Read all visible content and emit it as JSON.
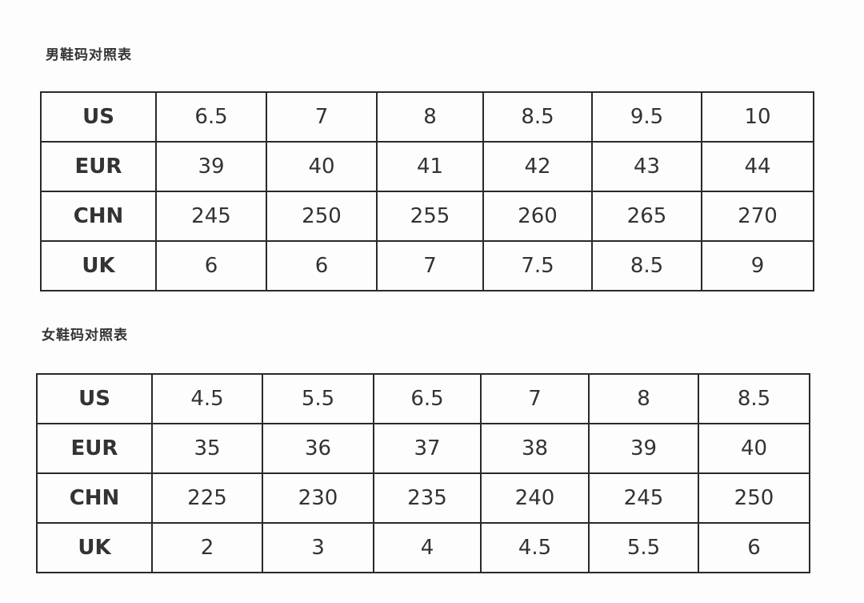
{
  "men": {
    "title": "男鞋码对照表",
    "rows": [
      {
        "label": "US",
        "values": [
          "6.5",
          "7",
          "8",
          "8.5",
          "9.5",
          "10"
        ]
      },
      {
        "label": "EUR",
        "values": [
          "39",
          "40",
          "41",
          "42",
          "43",
          "44"
        ]
      },
      {
        "label": "CHN",
        "values": [
          "245",
          "250",
          "255",
          "260",
          "265",
          "270"
        ]
      },
      {
        "label": "UK",
        "values": [
          "6",
          "6",
          "7",
          "7.5",
          "8.5",
          "9"
        ]
      }
    ]
  },
  "women": {
    "title": "女鞋码对照表",
    "rows": [
      {
        "label": "US",
        "values": [
          "4.5",
          "5.5",
          "6.5",
          "7",
          "8",
          "8.5"
        ]
      },
      {
        "label": "EUR",
        "values": [
          "35",
          "36",
          "37",
          "38",
          "39",
          "40"
        ]
      },
      {
        "label": "CHN",
        "values": [
          "225",
          "230",
          "235",
          "240",
          "245",
          "250"
        ]
      },
      {
        "label": "UK",
        "values": [
          "2",
          "3",
          "4",
          "4.5",
          "5.5",
          "6"
        ]
      }
    ]
  }
}
